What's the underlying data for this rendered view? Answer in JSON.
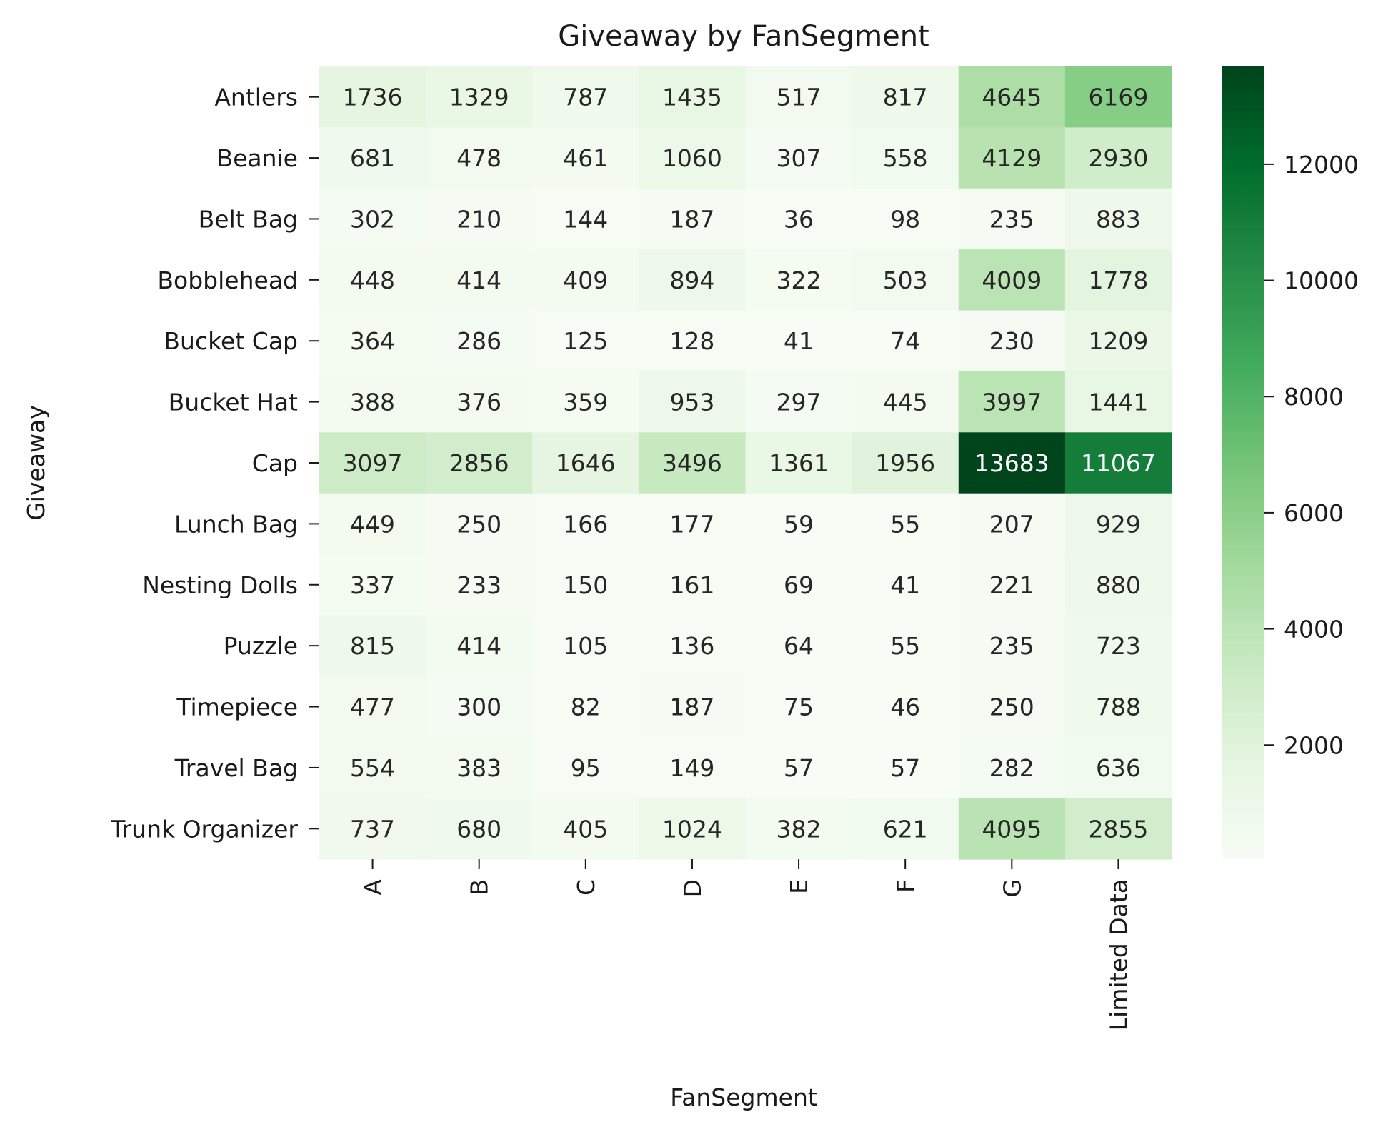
{
  "chart_data": {
    "type": "heatmap",
    "title": "Giveaway by FanSegment",
    "xlabel": "FanSegment",
    "ylabel": "Giveaway",
    "x_categories": [
      "A",
      "B",
      "C",
      "D",
      "E",
      "F",
      "G",
      "Limited Data"
    ],
    "y_categories": [
      "Antlers",
      "Beanie",
      "Belt Bag",
      "Bobblehead",
      "Bucket Cap",
      "Bucket Hat",
      "Cap",
      "Lunch Bag",
      "Nesting Dolls",
      "Puzzle",
      "Timepiece",
      "Travel Bag",
      "Trunk Organizer"
    ],
    "values": [
      [
        1736,
        1329,
        787,
        1435,
        517,
        817,
        4645,
        6169
      ],
      [
        681,
        478,
        461,
        1060,
        307,
        558,
        4129,
        2930
      ],
      [
        302,
        210,
        144,
        187,
        36,
        98,
        235,
        883
      ],
      [
        448,
        414,
        409,
        894,
        322,
        503,
        4009,
        1778
      ],
      [
        364,
        286,
        125,
        128,
        41,
        74,
        230,
        1209
      ],
      [
        388,
        376,
        359,
        953,
        297,
        445,
        3997,
        1441
      ],
      [
        3097,
        2856,
        1646,
        3496,
        1361,
        1956,
        13683,
        11067
      ],
      [
        449,
        250,
        166,
        177,
        59,
        55,
        207,
        929
      ],
      [
        337,
        233,
        150,
        161,
        69,
        41,
        221,
        880
      ],
      [
        815,
        414,
        105,
        136,
        64,
        55,
        235,
        723
      ],
      [
        477,
        300,
        82,
        187,
        75,
        46,
        250,
        788
      ],
      [
        554,
        383,
        95,
        149,
        57,
        57,
        282,
        636
      ],
      [
        737,
        680,
        405,
        1024,
        382,
        621,
        4095,
        2855
      ]
    ],
    "colormap": "Greens",
    "colorbar": {
      "min": 36,
      "max": 13683,
      "ticks": [
        2000,
        4000,
        6000,
        8000,
        10000,
        12000
      ]
    },
    "annotations": true
  }
}
